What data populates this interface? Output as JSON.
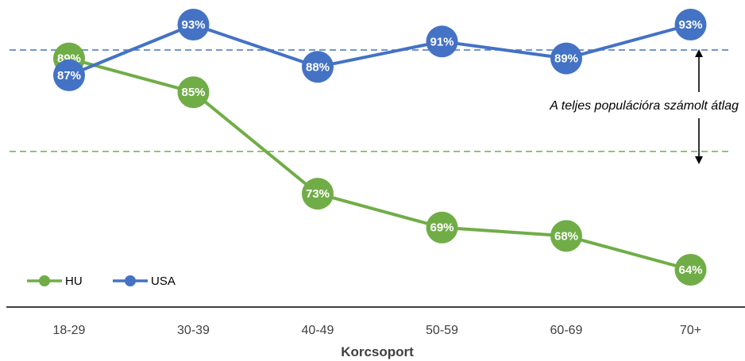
{
  "chart_data": {
    "type": "line",
    "categories": [
      "18-29",
      "30-39",
      "40-49",
      "50-59",
      "60-69",
      "70+"
    ],
    "series": [
      {
        "name": "HU",
        "values": [
          89,
          85,
          73,
          69,
          68,
          64
        ],
        "labels": [
          "89%",
          "85%",
          "73%",
          "69%",
          "68%",
          "64%"
        ],
        "color": "#70ad47"
      },
      {
        "name": "USA",
        "values": [
          87,
          93,
          88,
          91,
          89,
          93
        ],
        "labels": [
          "87%",
          "93%",
          "88%",
          "91%",
          "89%",
          "93%"
        ],
        "color": "#4472c4"
      }
    ],
    "reference_lines": [
      {
        "series": "USA",
        "value": 90,
        "color": "#4472c4",
        "style": "dashed"
      },
      {
        "series": "HU",
        "value": 78,
        "color": "#70ad47",
        "style": "dashed"
      }
    ],
    "annotation": "A teljes populációra számolt átlag",
    "xlabel": "Korcsoport",
    "ylabel": "",
    "ylim": [
      60,
      95
    ],
    "grid": false,
    "legend_position": "bottom-left"
  }
}
